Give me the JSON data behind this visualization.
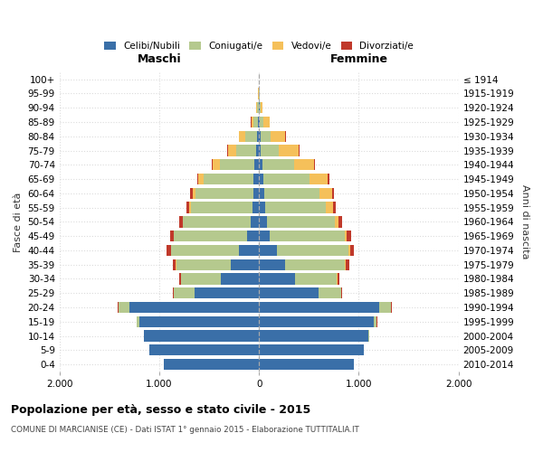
{
  "age_groups": [
    "0-4",
    "5-9",
    "10-14",
    "15-19",
    "20-24",
    "25-29",
    "30-34",
    "35-39",
    "40-44",
    "45-49",
    "50-54",
    "55-59",
    "60-64",
    "65-69",
    "70-74",
    "75-79",
    "80-84",
    "85-89",
    "90-94",
    "95-99",
    "100+"
  ],
  "birth_years": [
    "2010-2014",
    "2005-2009",
    "2000-2004",
    "1995-1999",
    "1990-1994",
    "1985-1989",
    "1980-1984",
    "1975-1979",
    "1970-1974",
    "1965-1969",
    "1960-1964",
    "1955-1959",
    "1950-1954",
    "1945-1949",
    "1940-1944",
    "1935-1939",
    "1930-1934",
    "1925-1929",
    "1920-1924",
    "1915-1919",
    "≤ 1914"
  ],
  "males": {
    "celibe": [
      950,
      1100,
      1150,
      1200,
      1300,
      650,
      380,
      280,
      200,
      120,
      80,
      65,
      60,
      55,
      45,
      30,
      20,
      8,
      4,
      2,
      0
    ],
    "coniugato": [
      0,
      0,
      5,
      25,
      110,
      200,
      400,
      550,
      680,
      730,
      680,
      620,
      580,
      500,
      350,
      200,
      120,
      45,
      15,
      3,
      0
    ],
    "vedovo": [
      0,
      0,
      0,
      0,
      1,
      1,
      2,
      3,
      5,
      5,
      8,
      15,
      25,
      50,
      70,
      80,
      60,
      25,
      8,
      2,
      0
    ],
    "divorziato": [
      0,
      0,
      0,
      2,
      5,
      10,
      20,
      30,
      40,
      35,
      28,
      25,
      22,
      18,
      12,
      8,
      4,
      2,
      0,
      0,
      0
    ]
  },
  "females": {
    "nubile": [
      950,
      1050,
      1100,
      1150,
      1200,
      600,
      360,
      260,
      180,
      110,
      80,
      60,
      50,
      40,
      30,
      20,
      15,
      10,
      5,
      2,
      0
    ],
    "coniugata": [
      0,
      0,
      5,
      30,
      120,
      220,
      420,
      600,
      720,
      750,
      680,
      610,
      560,
      470,
      320,
      180,
      100,
      35,
      12,
      3,
      0
    ],
    "vedova": [
      0,
      0,
      0,
      1,
      2,
      3,
      5,
      8,
      10,
      20,
      40,
      70,
      120,
      180,
      200,
      200,
      150,
      60,
      20,
      5,
      1
    ],
    "divorziata": [
      0,
      0,
      0,
      2,
      5,
      12,
      22,
      35,
      45,
      40,
      32,
      28,
      22,
      15,
      10,
      6,
      4,
      2,
      1,
      0,
      0
    ]
  },
  "colors": {
    "celibe": "#3a6fa8",
    "coniugato": "#b5c98e",
    "vedovo": "#f5c05a",
    "divorziato": "#c0392b"
  },
  "xlim": 2000,
  "title": "Popolazione per età, sesso e stato civile - 2015",
  "subtitle": "COMUNE DI MARCIANISE (CE) - Dati ISTAT 1° gennaio 2015 - Elaborazione TUTTITALIA.IT",
  "ylabel_left": "Fasce di età",
  "ylabel_right": "Anni di nascita",
  "xlabel_left": "Maschi",
  "xlabel_right": "Femmine"
}
